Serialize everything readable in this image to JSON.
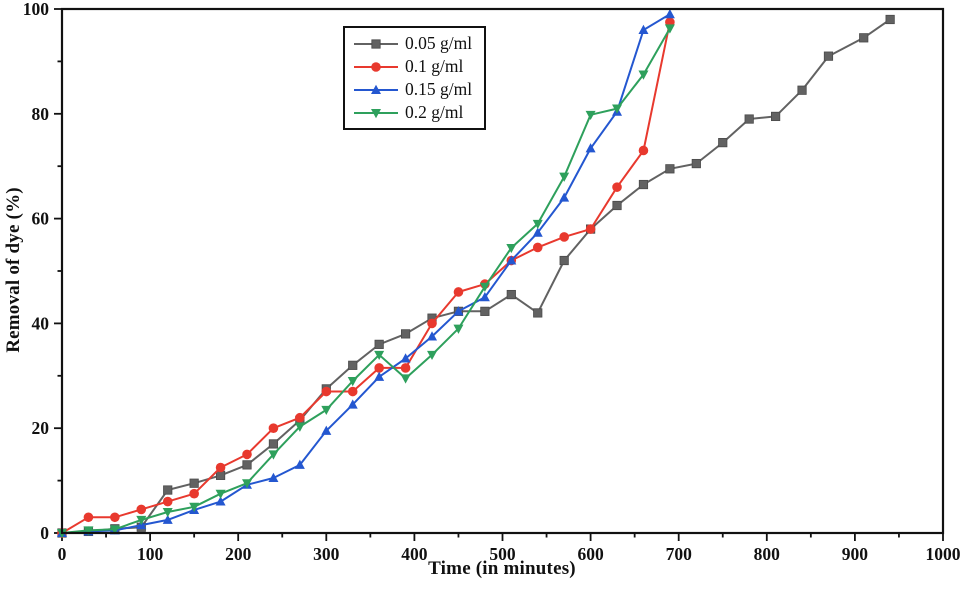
{
  "chart_data": {
    "type": "line",
    "title": "",
    "xlabel": "Time (in minutes)",
    "ylabel": "Removal of dye (%)",
    "xlim": [
      0,
      1000
    ],
    "ylim": [
      0,
      100
    ],
    "x_major_ticks": [
      0,
      100,
      200,
      300,
      400,
      500,
      600,
      700,
      800,
      900,
      1000
    ],
    "x_minor_step": 50,
    "y_major_ticks": [
      0,
      20,
      40,
      60,
      80,
      100
    ],
    "y_minor_step": 10,
    "grid": false,
    "legend_position": "inside-top-center-left",
    "frame": "full-box",
    "frame_color": "#111111",
    "series": [
      {
        "name": "0.05 g/ml",
        "color": "#626262",
        "marker": "square",
        "x": [
          0,
          30,
          60,
          90,
          120,
          150,
          180,
          210,
          240,
          270,
          300,
          330,
          360,
          390,
          420,
          450,
          480,
          510,
          540,
          570,
          600,
          630,
          660,
          690,
          720,
          750,
          780,
          810,
          840,
          870,
          910,
          940
        ],
        "y": [
          0,
          0.3,
          0.8,
          1.1,
          8.2,
          9.5,
          11,
          13,
          17,
          21.5,
          27.5,
          32,
          36,
          38,
          41,
          42.3,
          42.3,
          45.5,
          42,
          52,
          58,
          62.5,
          66.5,
          69.5,
          70.5,
          74.5,
          79,
          79.5,
          84.5,
          91,
          94.5,
          98
        ]
      },
      {
        "name": "0.1 g/ml",
        "color": "#e8392e",
        "marker": "circle",
        "x": [
          0,
          30,
          60,
          90,
          120,
          150,
          180,
          210,
          240,
          270,
          300,
          330,
          360,
          390,
          420,
          450,
          480,
          510,
          540,
          570,
          600,
          630,
          660,
          690
        ],
        "y": [
          0,
          3,
          3,
          4.5,
          6,
          7.5,
          12.5,
          15,
          20,
          22,
          27,
          27,
          31.5,
          31.5,
          40,
          46,
          47.5,
          52,
          54.5,
          56.5,
          58,
          66,
          73,
          97.5
        ]
      },
      {
        "name": "0.15 g/ml",
        "color": "#2457d0",
        "marker": "triangle-up",
        "x": [
          0,
          30,
          60,
          90,
          120,
          150,
          180,
          210,
          240,
          270,
          300,
          330,
          360,
          390,
          420,
          450,
          480,
          510,
          540,
          570,
          600,
          630,
          660,
          690
        ],
        "y": [
          0,
          0.3,
          0.5,
          1.5,
          2.5,
          4.4,
          6,
          9.2,
          10.5,
          13,
          19.5,
          24.5,
          29.8,
          33.3,
          37.5,
          42.3,
          45,
          52,
          57.3,
          64,
          73.4,
          80.4,
          96,
          99
        ]
      },
      {
        "name": "0.2 g/ml",
        "color": "#2ea05c",
        "marker": "triangle-down",
        "x": [
          0,
          30,
          60,
          90,
          120,
          150,
          180,
          210,
          240,
          270,
          300,
          330,
          360,
          390,
          420,
          450,
          480,
          510,
          540,
          570,
          600,
          630,
          660,
          690
        ],
        "y": [
          0,
          0.5,
          0.7,
          2.5,
          4,
          5,
          7.5,
          9.5,
          15,
          20.3,
          23.5,
          29,
          34,
          29.5,
          34,
          39,
          47,
          54.4,
          59,
          68,
          79.8,
          81,
          87.5,
          96.3
        ]
      }
    ]
  }
}
